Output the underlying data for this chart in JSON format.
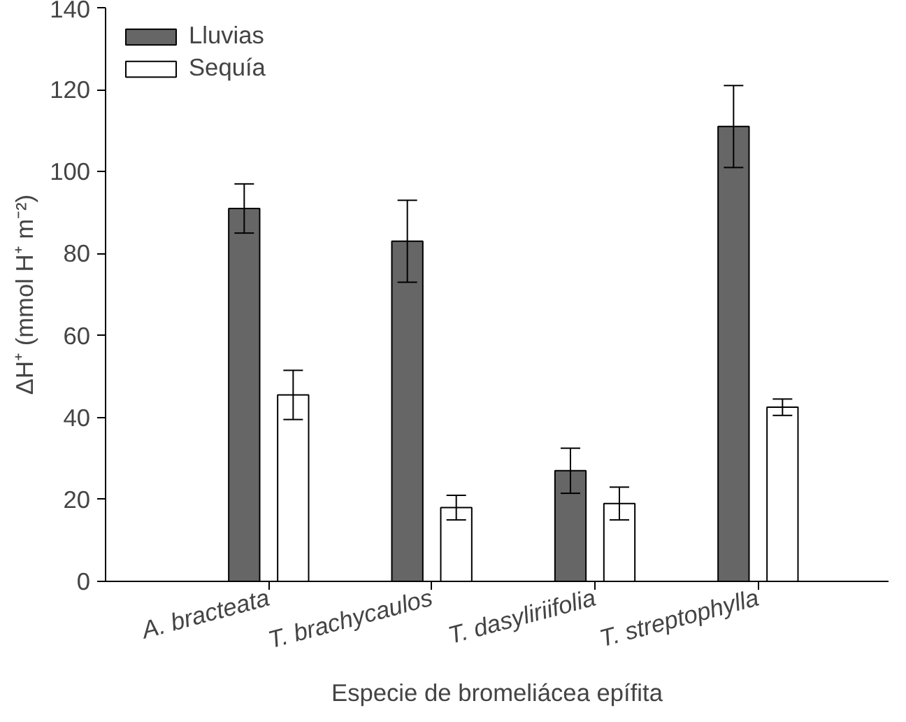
{
  "chart_data": {
    "type": "bar",
    "xlabel": "Especie de bromeliácea epífita",
    "ylabel": "ΔH⁺ (mmol H⁺ m⁻²)",
    "categories": [
      "A. bracteata",
      "T. brachycaulos",
      "T. dasyliriifolia",
      "T. streptophylla"
    ],
    "series": [
      {
        "name": "Lluvias",
        "color": "#666666",
        "values": [
          91,
          83,
          27,
          111
        ],
        "errors": [
          6,
          10,
          5.5,
          10
        ]
      },
      {
        "name": "Sequía",
        "color": "#ffffff",
        "values": [
          45.5,
          18,
          19,
          42.5
        ],
        "errors": [
          6,
          3,
          4,
          2
        ]
      }
    ],
    "ylim": [
      0,
      140
    ],
    "yticks": [
      0,
      20,
      40,
      60,
      80,
      100,
      120,
      140
    ],
    "grid": false,
    "legend": "top left"
  }
}
